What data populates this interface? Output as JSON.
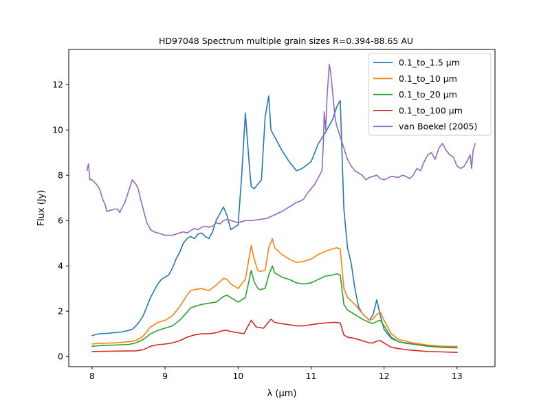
{
  "chart_data": {
    "type": "line",
    "title": "HD97048 Spectrum multiple grain sizes R=0.394-88.65 AU",
    "xlabel": "λ (μm)",
    "ylabel": "Flux (Jy)",
    "xlim": [
      7.68,
      13.52
    ],
    "ylim": [
      -0.45,
      13.55
    ],
    "xticks": [
      "8",
      "9",
      "10",
      "11",
      "12",
      "13"
    ],
    "yticks": [
      "0",
      "2",
      "4",
      "6",
      "8",
      "10",
      "12"
    ],
    "grid": false,
    "legend_position": "top-right",
    "series": [
      {
        "name": "0.1_to_1.5 μm",
        "color": "#1f77b4",
        "x": [
          8.0,
          8.05,
          8.1,
          8.2,
          8.3,
          8.4,
          8.5,
          8.55,
          8.6,
          8.65,
          8.7,
          8.75,
          8.8,
          8.85,
          8.9,
          8.95,
          9.0,
          9.05,
          9.1,
          9.15,
          9.2,
          9.25,
          9.3,
          9.35,
          9.4,
          9.45,
          9.5,
          9.55,
          9.6,
          9.65,
          9.7,
          9.75,
          9.8,
          9.85,
          9.9,
          9.95,
          10.0,
          10.05,
          10.1,
          10.15,
          10.18,
          10.22,
          10.27,
          10.32,
          10.37,
          10.42,
          10.45,
          10.5,
          10.55,
          10.6,
          10.7,
          10.8,
          10.85,
          10.9,
          11.0,
          11.05,
          11.1,
          11.2,
          11.3,
          11.35,
          11.4,
          11.45,
          11.5,
          11.55,
          11.6,
          11.65,
          11.7,
          11.8,
          11.85,
          11.9,
          11.95,
          12.0,
          12.1,
          12.2,
          12.3,
          12.5,
          12.7,
          12.9,
          13.0
        ],
        "values": [
          0.92,
          0.97,
          1.0,
          1.02,
          1.05,
          1.08,
          1.15,
          1.2,
          1.35,
          1.55,
          1.8,
          2.2,
          2.6,
          2.9,
          3.2,
          3.4,
          3.5,
          3.6,
          3.9,
          4.3,
          4.6,
          5.0,
          5.2,
          5.3,
          5.2,
          5.4,
          5.45,
          5.3,
          5.2,
          5.5,
          6.0,
          6.3,
          6.6,
          6.2,
          5.6,
          5.7,
          5.8,
          8.0,
          10.75,
          8.6,
          7.5,
          7.4,
          7.6,
          7.8,
          10.55,
          11.5,
          10.0,
          9.7,
          9.4,
          9.1,
          8.6,
          8.2,
          8.25,
          8.35,
          8.6,
          9.0,
          9.4,
          9.9,
          10.5,
          11.0,
          11.3,
          6.5,
          4.8,
          4.1,
          3.0,
          2.2,
          1.9,
          1.6,
          1.85,
          2.5,
          1.8,
          1.2,
          0.8,
          0.65,
          0.58,
          0.5,
          0.46,
          0.44,
          0.44
        ]
      },
      {
        "name": "0.1_to_10 μm",
        "color": "#ff7f0e",
        "x": [
          8.0,
          8.1,
          8.3,
          8.5,
          8.6,
          8.7,
          8.8,
          8.9,
          9.0,
          9.1,
          9.2,
          9.3,
          9.35,
          9.4,
          9.5,
          9.6,
          9.7,
          9.8,
          9.85,
          9.9,
          10.0,
          10.1,
          10.18,
          10.22,
          10.27,
          10.3,
          10.37,
          10.42,
          10.47,
          10.5,
          10.6,
          10.7,
          10.8,
          10.9,
          11.0,
          11.1,
          11.2,
          11.3,
          11.35,
          11.4,
          11.45,
          11.5,
          11.6,
          11.7,
          11.8,
          11.85,
          11.9,
          11.95,
          12.0,
          12.1,
          12.2,
          12.4,
          12.6,
          12.8,
          13.0
        ],
        "values": [
          0.55,
          0.58,
          0.6,
          0.65,
          0.7,
          0.9,
          1.3,
          1.5,
          1.6,
          1.8,
          2.2,
          2.7,
          2.9,
          2.95,
          3.0,
          2.9,
          3.15,
          3.45,
          3.4,
          3.2,
          3.0,
          3.4,
          4.9,
          4.3,
          3.8,
          3.75,
          3.8,
          4.8,
          5.2,
          4.8,
          4.5,
          4.3,
          4.15,
          4.2,
          4.3,
          4.5,
          4.65,
          4.75,
          4.8,
          4.75,
          3.0,
          2.6,
          2.3,
          1.9,
          1.6,
          1.65,
          1.85,
          1.95,
          1.6,
          1.0,
          0.75,
          0.6,
          0.5,
          0.45,
          0.43
        ]
      },
      {
        "name": "0.1_to_20 μm",
        "color": "#2ca02c",
        "x": [
          8.0,
          8.1,
          8.3,
          8.5,
          8.6,
          8.7,
          8.8,
          8.9,
          9.0,
          9.1,
          9.2,
          9.3,
          9.35,
          9.4,
          9.5,
          9.6,
          9.7,
          9.8,
          9.85,
          9.9,
          10.0,
          10.1,
          10.18,
          10.22,
          10.27,
          10.3,
          10.37,
          10.42,
          10.47,
          10.5,
          10.6,
          10.7,
          10.8,
          10.9,
          11.0,
          11.1,
          11.2,
          11.3,
          11.35,
          11.4,
          11.45,
          11.5,
          11.6,
          11.7,
          11.8,
          11.85,
          11.9,
          11.95,
          12.0,
          12.1,
          12.2,
          12.4,
          12.6,
          12.8,
          13.0
        ],
        "values": [
          0.45,
          0.48,
          0.5,
          0.53,
          0.6,
          0.75,
          1.0,
          1.15,
          1.25,
          1.35,
          1.6,
          1.95,
          2.15,
          2.2,
          2.3,
          2.35,
          2.4,
          2.65,
          2.7,
          2.6,
          2.4,
          2.6,
          3.8,
          3.3,
          3.0,
          2.95,
          3.0,
          3.6,
          4.0,
          3.7,
          3.5,
          3.4,
          3.25,
          3.2,
          3.25,
          3.4,
          3.55,
          3.6,
          3.65,
          3.6,
          2.3,
          2.05,
          1.85,
          1.65,
          1.5,
          1.45,
          1.55,
          1.6,
          1.35,
          0.85,
          0.65,
          0.55,
          0.45,
          0.4,
          0.38
        ]
      },
      {
        "name": "0.1_to_100 μm",
        "color": "#d62728",
        "x": [
          8.0,
          8.2,
          8.4,
          8.6,
          8.7,
          8.8,
          8.9,
          9.0,
          9.1,
          9.2,
          9.3,
          9.4,
          9.5,
          9.6,
          9.7,
          9.8,
          9.85,
          9.9,
          10.0,
          10.08,
          10.18,
          10.25,
          10.35,
          10.45,
          10.5,
          10.6,
          10.8,
          10.9,
          11.0,
          11.1,
          11.2,
          11.3,
          11.35,
          11.4,
          11.45,
          11.5,
          11.6,
          11.7,
          11.8,
          11.85,
          11.9,
          11.95,
          12.0,
          12.1,
          12.3,
          12.6,
          12.8,
          13.0
        ],
        "values": [
          0.22,
          0.23,
          0.24,
          0.25,
          0.3,
          0.45,
          0.52,
          0.55,
          0.6,
          0.7,
          0.85,
          0.95,
          1.0,
          1.0,
          1.05,
          1.15,
          1.15,
          1.1,
          1.05,
          1.0,
          1.6,
          1.3,
          1.25,
          1.65,
          1.5,
          1.45,
          1.35,
          1.35,
          1.4,
          1.45,
          1.48,
          1.5,
          1.5,
          1.48,
          0.95,
          0.85,
          0.8,
          0.7,
          0.6,
          0.6,
          0.68,
          0.7,
          0.6,
          0.4,
          0.3,
          0.22,
          0.2,
          0.18
        ]
      },
      {
        "name": "van Boekel (2005)",
        "color": "#9467bd",
        "x": [
          7.93,
          7.95,
          7.97,
          8.0,
          8.03,
          8.06,
          8.1,
          8.13,
          8.15,
          8.18,
          8.2,
          8.25,
          8.3,
          8.35,
          8.38,
          8.4,
          8.45,
          8.5,
          8.55,
          8.6,
          8.63,
          8.66,
          8.7,
          8.75,
          8.8,
          8.85,
          8.9,
          8.95,
          9.0,
          9.05,
          9.1,
          9.15,
          9.2,
          9.25,
          9.3,
          9.35,
          9.4,
          9.45,
          9.5,
          9.55,
          9.6,
          9.65,
          9.7,
          9.75,
          9.8,
          9.85,
          9.9,
          9.95,
          10.0,
          10.05,
          10.1,
          10.2,
          10.3,
          10.4,
          10.5,
          10.6,
          10.7,
          10.8,
          10.85,
          10.9,
          10.95,
          11.0,
          11.05,
          11.1,
          11.15,
          11.17,
          11.18,
          11.2,
          11.22,
          11.23,
          11.25,
          11.27,
          11.3,
          11.33,
          11.35,
          11.4,
          11.45,
          11.5,
          11.55,
          11.6,
          11.7,
          11.75,
          11.8,
          11.85,
          11.9,
          11.95,
          12.0,
          12.1,
          12.2,
          12.25,
          12.3,
          12.35,
          12.4,
          12.45,
          12.5,
          12.55,
          12.6,
          12.65,
          12.7,
          12.75,
          12.8,
          12.85,
          12.9,
          12.95,
          13.0,
          13.05,
          13.1,
          13.15,
          13.18,
          13.2,
          13.22,
          13.25
        ],
        "values": [
          8.2,
          8.5,
          7.8,
          7.8,
          7.7,
          7.6,
          7.4,
          7.1,
          6.9,
          6.7,
          6.4,
          6.45,
          6.5,
          6.5,
          6.35,
          6.5,
          6.8,
          7.3,
          7.8,
          7.6,
          7.4,
          7.0,
          6.5,
          5.9,
          5.6,
          5.5,
          5.45,
          5.4,
          5.35,
          5.35,
          5.35,
          5.4,
          5.45,
          5.5,
          5.45,
          5.55,
          5.65,
          5.6,
          5.7,
          5.75,
          5.7,
          5.75,
          5.9,
          5.85,
          6.0,
          6.05,
          6.0,
          5.95,
          5.9,
          5.95,
          6.0,
          6.0,
          6.05,
          6.1,
          6.25,
          6.4,
          6.6,
          6.8,
          6.85,
          6.95,
          7.2,
          7.4,
          7.6,
          7.9,
          8.2,
          9.5,
          10.8,
          10.0,
          11.5,
          12.0,
          12.9,
          12.5,
          11.5,
          10.5,
          10.2,
          9.7,
          9.2,
          8.7,
          8.4,
          8.2,
          8.0,
          7.8,
          7.9,
          7.95,
          8.0,
          7.85,
          7.8,
          7.95,
          7.9,
          8.0,
          7.95,
          7.85,
          8.0,
          8.3,
          8.2,
          8.6,
          8.9,
          9.0,
          8.7,
          9.2,
          9.4,
          9.1,
          8.9,
          8.8,
          8.4,
          8.3,
          8.4,
          8.7,
          8.9,
          8.3,
          9.1,
          9.4
        ]
      }
    ]
  }
}
